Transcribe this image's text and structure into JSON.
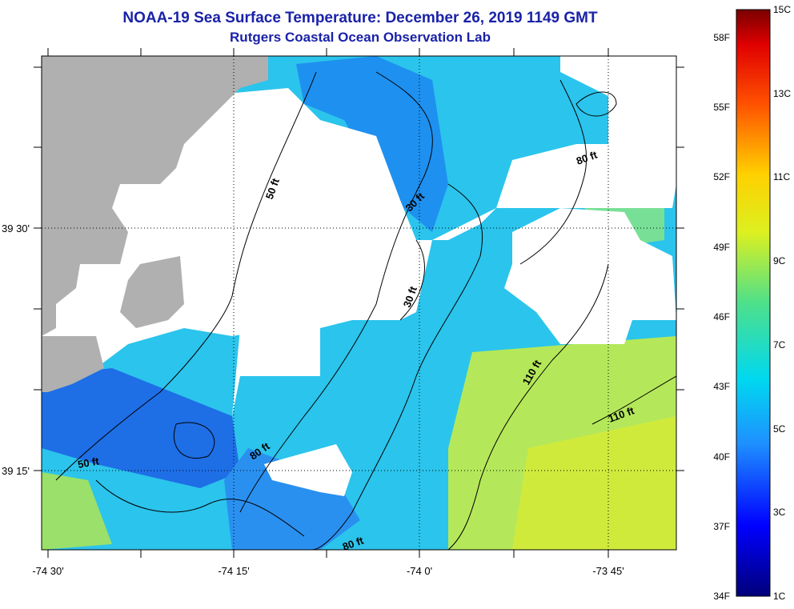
{
  "title": "NOAA-19 Sea Surface Temperature:  December 26, 2019 1149 GMT",
  "subtitle": "Rutgers Coastal Ocean Observation Lab",
  "axes": {
    "lat_labels": [
      "39 30'",
      "39 15'"
    ],
    "lon_labels": [
      "-74 30'",
      "-74 15'",
      "-74 0'",
      "-73 45'"
    ]
  },
  "contours": {
    "labels": [
      "50 ft",
      "30 ft",
      "80 ft",
      "30 ft",
      "110 ft",
      "110 ft",
      "80 ft",
      "50 ft",
      "80 ft"
    ]
  },
  "legend": {
    "fahrenheit": [
      "58F",
      "55F",
      "52F",
      "49F",
      "46F",
      "43F",
      "40F",
      "37F",
      "34F"
    ],
    "celsius": [
      "15C",
      "13C",
      "11C",
      "9C",
      "7C",
      "5C",
      "3C",
      "1C"
    ]
  },
  "colors": {
    "land": "#b0b0b0",
    "no_data": "#ffffff",
    "title": "#1a22a8"
  }
}
